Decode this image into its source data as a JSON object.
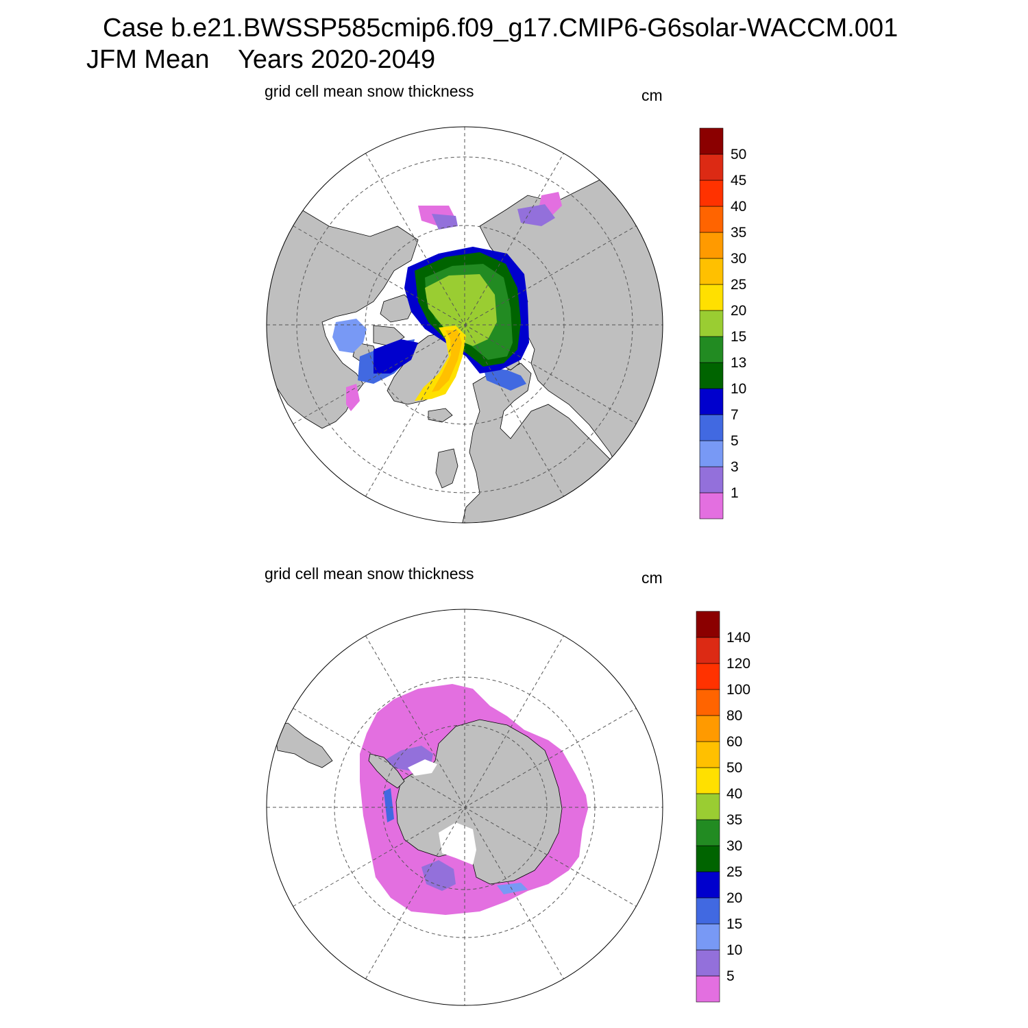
{
  "header": {
    "case_line": "Case b.e21.BWSSP585cmip6.f09_g17.CMIP6-G6solar-WACCM.001",
    "period_line": "JFM Mean    Years 2020-2049"
  },
  "colors": {
    "land": "#bfbfbf",
    "ocean": "#ffffff",
    "grid": "#555555"
  },
  "chart_data": [
    {
      "type": "heatmap",
      "region": "arctic",
      "projection": "north polar stereographic",
      "title": "grid cell mean snow thickness",
      "units": "cm",
      "colorbar": {
        "levels": [
          1,
          3,
          5,
          7,
          10,
          13,
          15,
          20,
          25,
          30,
          35,
          40,
          45,
          50
        ],
        "colors": [
          "#e36fe0",
          "#9370db",
          "#7899f5",
          "#4169e1",
          "#0000cd",
          "#006400",
          "#228b22",
          "#9acd32",
          "#ffe000",
          "#ffc000",
          "#ff9a00",
          "#ff6400",
          "#ff3200",
          "#dc2a14",
          "#8b0000"
        ]
      }
    },
    {
      "type": "heatmap",
      "region": "antarctic",
      "projection": "south polar stereographic",
      "title": "grid cell mean snow thickness",
      "units": "cm",
      "colorbar": {
        "levels": [
          5,
          10,
          15,
          20,
          25,
          30,
          35,
          40,
          50,
          60,
          80,
          100,
          120,
          140
        ],
        "colors": [
          "#e36fe0",
          "#9370db",
          "#7899f5",
          "#4169e1",
          "#0000cd",
          "#006400",
          "#228b22",
          "#9acd32",
          "#ffe000",
          "#ffc000",
          "#ff9a00",
          "#ff6400",
          "#ff3200",
          "#dc2a14",
          "#8b0000"
        ]
      }
    }
  ]
}
